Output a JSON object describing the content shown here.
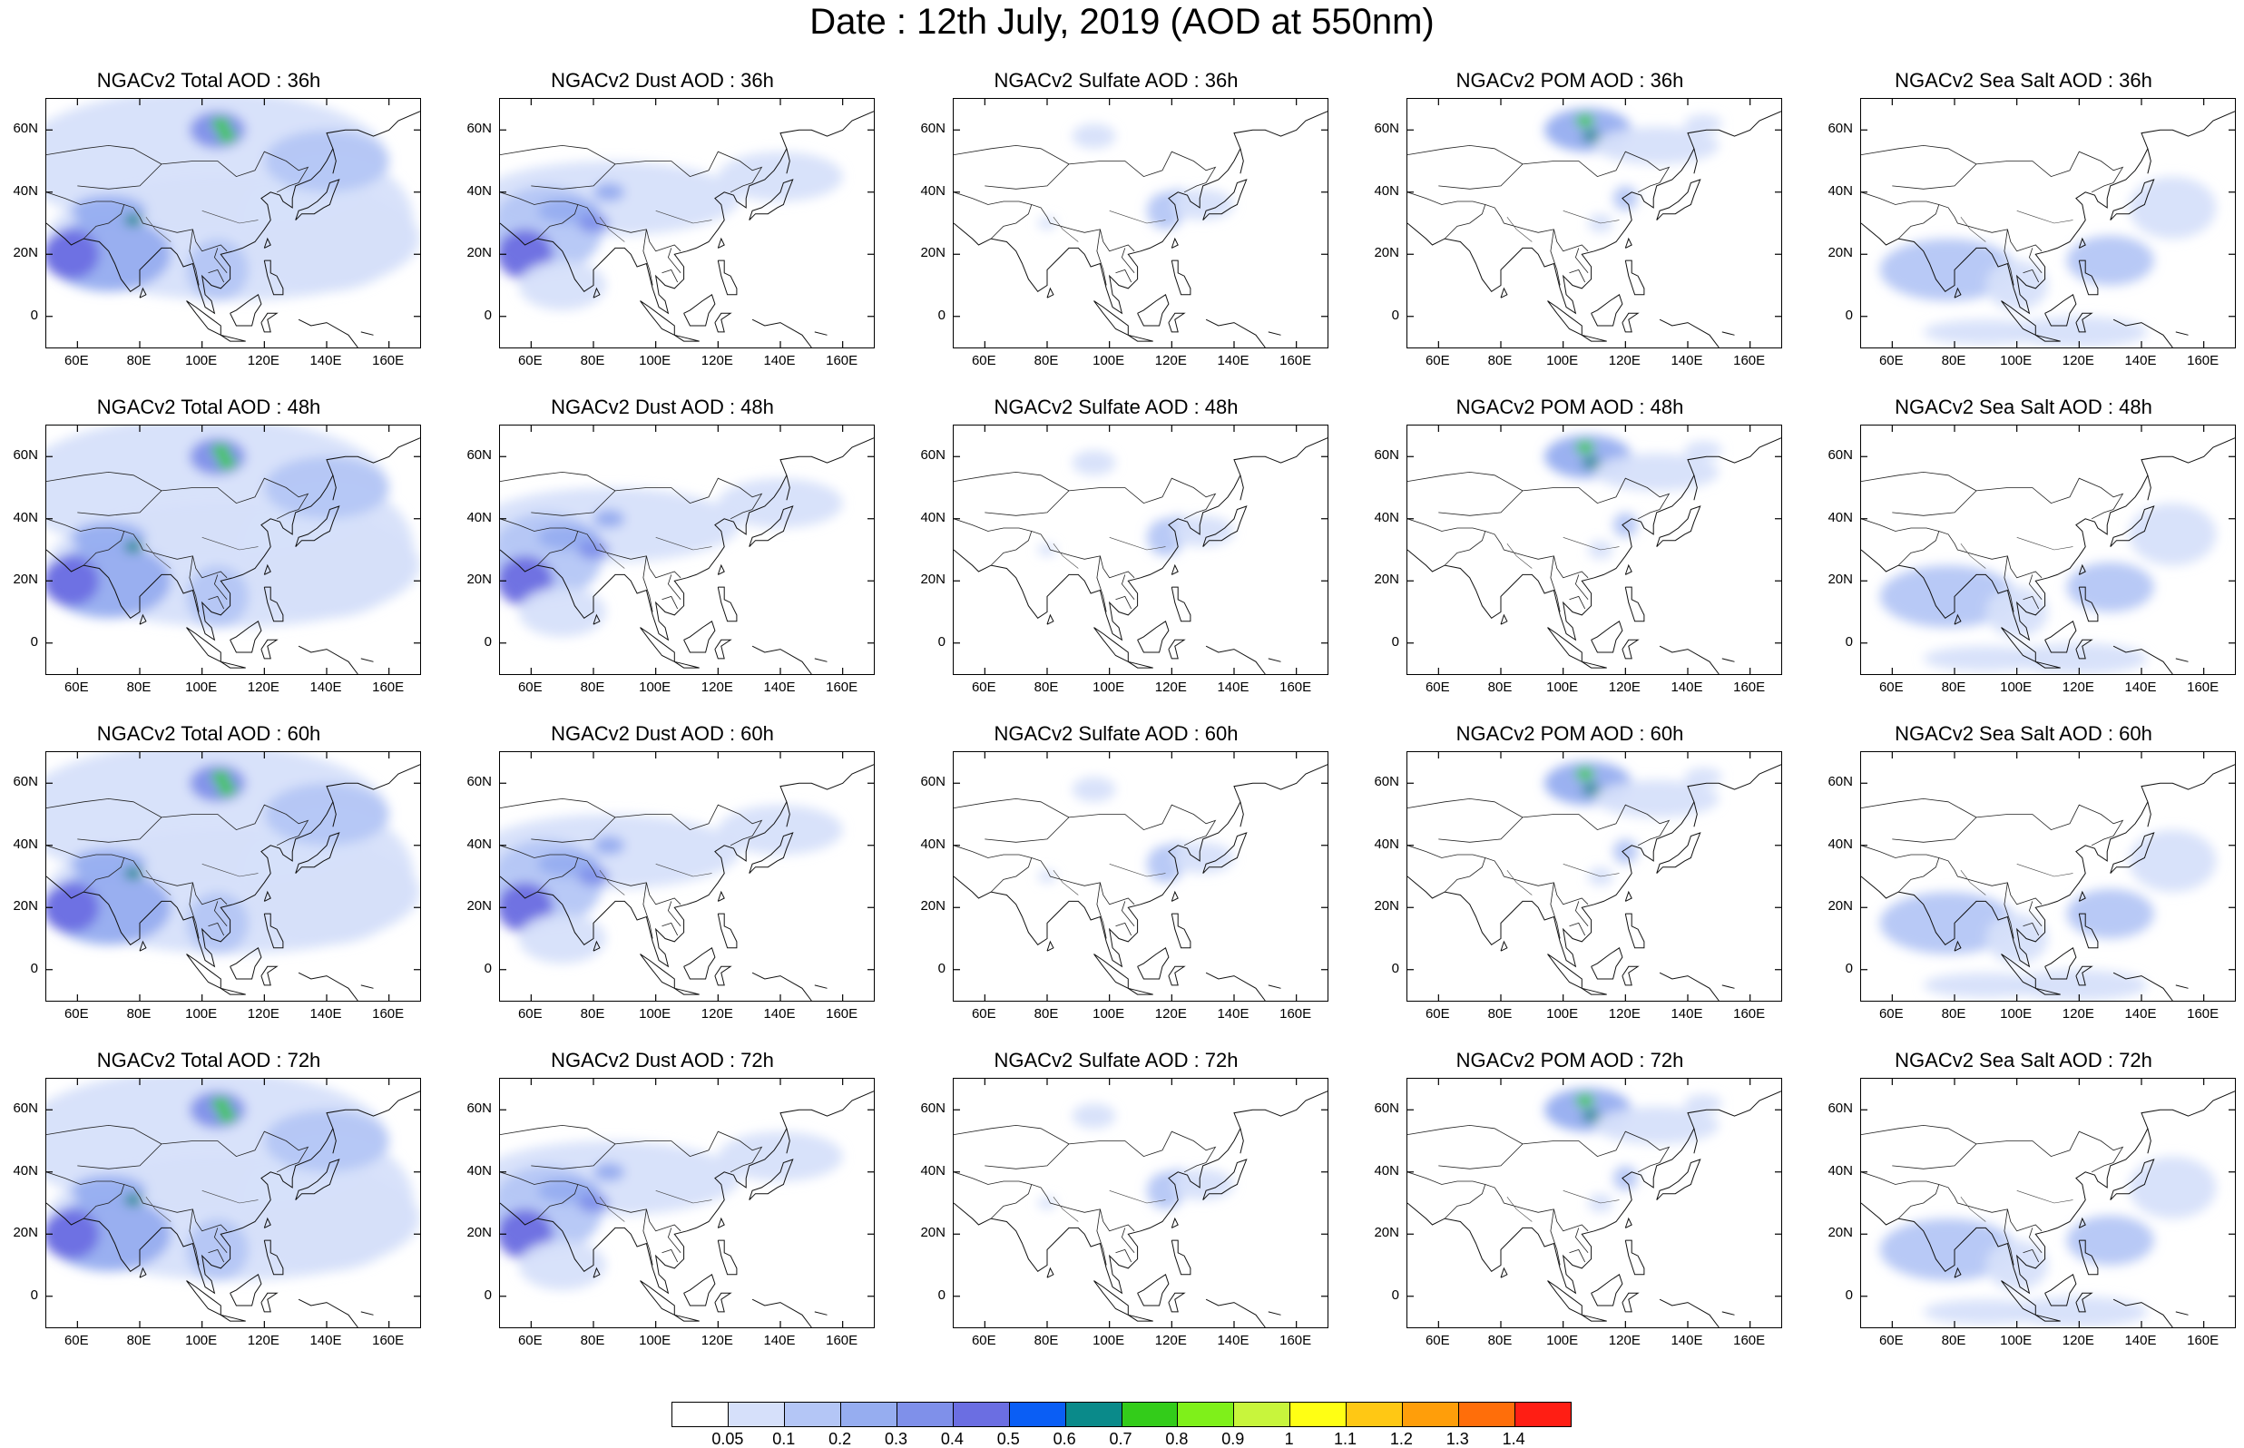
{
  "title": "Date : 12th July, 2019 (AOD at 550nm)",
  "map": {
    "lon_range": [
      50,
      170
    ],
    "lat_range": [
      -10,
      70
    ],
    "lat_ticks": [
      "60N",
      "40N",
      "20N",
      "0"
    ],
    "lon_ticks": [
      "60E",
      "80E",
      "100E",
      "120E",
      "140E",
      "160E"
    ]
  },
  "panels": [
    {
      "title": "NGACv2 Total AOD : 36h",
      "species": "total"
    },
    {
      "title": "NGACv2 Dust AOD : 36h",
      "species": "dust"
    },
    {
      "title": "NGACv2 Sulfate AOD : 36h",
      "species": "sulfate"
    },
    {
      "title": "NGACv2 POM AOD : 36h",
      "species": "pom"
    },
    {
      "title": "NGACv2 Sea Salt AOD : 36h",
      "species": "seasalt"
    },
    {
      "title": "NGACv2 Total AOD : 48h",
      "species": "total"
    },
    {
      "title": "NGACv2 Dust AOD : 48h",
      "species": "dust"
    },
    {
      "title": "NGACv2 Sulfate AOD : 48h",
      "species": "sulfate"
    },
    {
      "title": "NGACv2 POM AOD : 48h",
      "species": "pom"
    },
    {
      "title": "NGACv2 Sea Salt AOD : 48h",
      "species": "seasalt"
    },
    {
      "title": "NGACv2 Total AOD : 60h",
      "species": "total"
    },
    {
      "title": "NGACv2 Dust AOD : 60h",
      "species": "dust"
    },
    {
      "title": "NGACv2 Sulfate AOD : 60h",
      "species": "sulfate"
    },
    {
      "title": "NGACv2 POM AOD : 60h",
      "species": "pom"
    },
    {
      "title": "NGACv2 Sea Salt AOD : 60h",
      "species": "seasalt"
    },
    {
      "title": "NGACv2 Total AOD : 72h",
      "species": "total"
    },
    {
      "title": "NGACv2 Dust AOD : 72h",
      "species": "dust"
    },
    {
      "title": "NGACv2 Sulfate AOD : 72h",
      "species": "sulfate"
    },
    {
      "title": "NGACv2 POM AOD : 72h",
      "species": "pom"
    },
    {
      "title": "NGACv2 Sea Salt  AOD : 72h",
      "species": "seasalt"
    }
  ],
  "colorbar": {
    "labels": [
      "0.05",
      "0.1",
      "0.2",
      "0.3",
      "0.4",
      "0.5",
      "0.6",
      "0.7",
      "0.8",
      "0.9",
      "1",
      "1.1",
      "1.2",
      "1.3",
      "1.4"
    ],
    "colors": [
      "#ffffff",
      "#d6e0fa",
      "#b4c6f6",
      "#96adf0",
      "#7f90ea",
      "#6b6ee2",
      "#0a5ef5",
      "#0a8a8a",
      "#33cc1a",
      "#7ff01a",
      "#c8f53c",
      "#ffff14",
      "#ffc814",
      "#ff9e0a",
      "#ff6e0a",
      "#ff1e14"
    ]
  }
}
